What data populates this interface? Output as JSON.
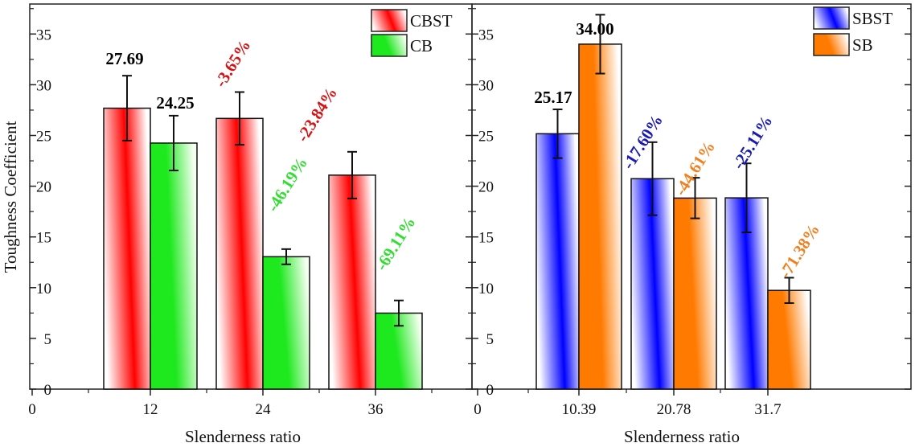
{
  "chart_data": [
    {
      "type": "bar",
      "ylabel": "Toughness Coefficient",
      "xlabel": "Slenderness ratio",
      "ylim": [
        0,
        38
      ],
      "yticks": [
        "0",
        "5",
        "10",
        "15",
        "20",
        "25",
        "30",
        "35"
      ],
      "xticks": [
        "0",
        "12",
        "24",
        "36"
      ],
      "categories": [
        "12",
        "24",
        "36"
      ],
      "legend_position": "top-right",
      "series": [
        {
          "name": "CBST",
          "color": "#ff0000",
          "label_color": "#d41414",
          "values": [
            27.69,
            26.68,
            21.09
          ],
          "errors": [
            3.2,
            2.6,
            2.3
          ],
          "labels": [
            "27.69",
            "-3.65%",
            "-23.84%"
          ]
        },
        {
          "name": "CB",
          "color": "#1ee81e",
          "label_color": "#33dd33",
          "values": [
            24.25,
            13.05,
            7.49
          ],
          "errors": [
            2.7,
            0.75,
            1.25
          ],
          "labels": [
            "24.25",
            "-46.19%",
            "-69.11%"
          ]
        }
      ]
    },
    {
      "type": "bar",
      "xlabel": "Slenderness ratio",
      "ylim": [
        0,
        38
      ],
      "yticks": [
        "0",
        "5",
        "10",
        "15",
        "20",
        "25",
        "30",
        "35"
      ],
      "xticks": [
        "0",
        "10.39",
        "20.78",
        "31.7"
      ],
      "categories": [
        "10.39",
        "20.78",
        "31.7"
      ],
      "legend_position": "top-right",
      "series": [
        {
          "name": "SBST",
          "color": "#0000ff",
          "label_color": "#1a1ab4",
          "values": [
            25.17,
            20.74,
            18.85
          ],
          "errors": [
            2.4,
            3.6,
            3.4
          ],
          "labels": [
            "25.17",
            "-17.60%",
            "-25.11%"
          ]
        },
        {
          "name": "SB",
          "color": "#ff7a00",
          "label_color": "#f08020",
          "values": [
            34.0,
            18.83,
            9.73
          ],
          "errors": [
            2.9,
            2.0,
            1.25
          ],
          "labels": [
            "34.00",
            "-44.61%",
            "-71.38%"
          ]
        }
      ]
    }
  ]
}
